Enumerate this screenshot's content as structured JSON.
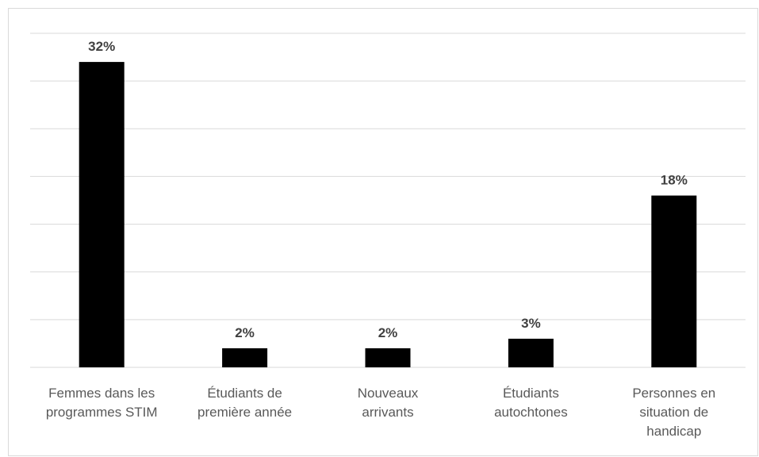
{
  "chart_data": {
    "type": "bar",
    "categories": [
      [
        "Femmes dans les",
        "programmes STIM"
      ],
      [
        "Étudiants de",
        "première année"
      ],
      [
        "Nouveaux",
        "arrivants"
      ],
      [
        "Étudiants",
        "autochtones"
      ],
      [
        "Personnes en",
        "situation de",
        "handicap"
      ]
    ],
    "values": [
      32,
      2,
      2,
      3,
      18
    ],
    "data_labels": [
      "32%",
      "2%",
      "2%",
      "3%",
      "18%"
    ],
    "ylim": [
      0,
      35
    ],
    "y_gridlines": [
      0,
      5,
      10,
      15,
      20,
      25,
      30,
      35
    ],
    "y_axis_labels_visible": false,
    "grid": true,
    "legend": "none",
    "title": "",
    "xlabel": "",
    "ylabel": "",
    "bar_color": "#000000",
    "gridline_color": "#d9d9d9",
    "label_color": "#404040",
    "category_color": "#595959"
  }
}
